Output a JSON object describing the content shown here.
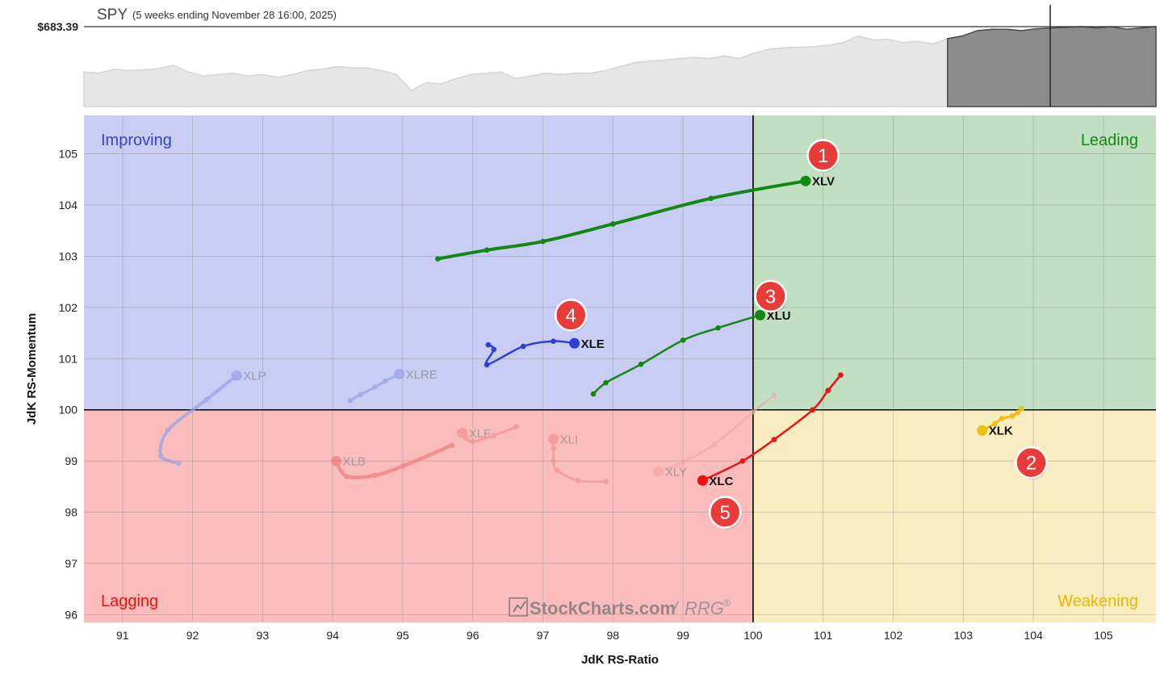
{
  "header": {
    "symbol": "SPY",
    "period": "(5 weeks ending November 28 16:00, 2025)",
    "price_label": "$683.39"
  },
  "colors": {
    "improving": "#c9cdf4",
    "leading": "#c1dfc1",
    "lagging": "#fbbcbc",
    "weakening": "#f8ecc0",
    "improving_text": "#3344cc",
    "leading_text": "#138a13",
    "lagging_text": "#ee1111",
    "weakening_text": "#e8b800",
    "marker": "#ea3b3b"
  },
  "quadrants": {
    "improving": "Improving",
    "leading": "Leading",
    "lagging": "Lagging",
    "weakening": "Weakening"
  },
  "watermark": {
    "main": "StockCharts.com",
    "sep": "/",
    "rrg": "RRG",
    "reg": "®"
  },
  "chart_data": [
    {
      "type": "area",
      "title": "SPY",
      "subtitle": "(5 weeks ending November 28 16:00, 2025)",
      "reference_label": "$683.39",
      "values": [
        66,
        65,
        68,
        67,
        67.5,
        68.5,
        71,
        66,
        63,
        64,
        65,
        63,
        64,
        62,
        64,
        67,
        68,
        70,
        69,
        69,
        67,
        64,
        52,
        58,
        57,
        61,
        64,
        65,
        66,
        61,
        63,
        65,
        64,
        65,
        65,
        67,
        70,
        73,
        74,
        75,
        76,
        77,
        76,
        78,
        76,
        80,
        83,
        84,
        84.5,
        85,
        86,
        88,
        93,
        90,
        90.5,
        88,
        89,
        87,
        91,
        93,
        97,
        98,
        98,
        97,
        98.5,
        99,
        99.5,
        100,
        99,
        100,
        98,
        99,
        100
      ],
      "highlight_from_index": 58
    },
    {
      "type": "line",
      "xlabel": "JdK RS-Ratio",
      "ylabel": "JdK RS-Momentum",
      "xlim": [
        90.45,
        105.75
      ],
      "ylim": [
        95.85,
        105.75
      ],
      "xticks": [
        "91",
        "92",
        "93",
        "94",
        "95",
        "96",
        "97",
        "98",
        "99",
        "100",
        "101",
        "102",
        "103",
        "104",
        "105"
      ],
      "yticks": [
        "96",
        "97",
        "98",
        "99",
        "100",
        "101",
        "102",
        "103",
        "104",
        "105"
      ],
      "grid": true,
      "center": [
        100,
        100
      ],
      "series": [
        {
          "name": "XLV",
          "color": "#118811",
          "opacity": 1,
          "width": 4,
          "points": [
            [
              95.5,
              102.95
            ],
            [
              96.2,
              103.12
            ],
            [
              97.0,
              103.29
            ],
            [
              98.0,
              103.63
            ],
            [
              99.4,
              104.13
            ],
            [
              100.75,
              104.47
            ]
          ]
        },
        {
          "name": "XLU",
          "color": "#118811",
          "opacity": 1,
          "width": 2.5,
          "points": [
            [
              97.72,
              100.31
            ],
            [
              97.9,
              100.53
            ],
            [
              98.4,
              100.89
            ],
            [
              99.0,
              101.36
            ],
            [
              99.5,
              101.6
            ],
            [
              100.1,
              101.85
            ]
          ]
        },
        {
          "name": "XLE",
          "color": "#2f3fd4",
          "opacity": 1,
          "width": 2.5,
          "points": [
            [
              96.22,
              101.27
            ],
            [
              96.3,
              101.18
            ],
            [
              96.2,
              100.88
            ],
            [
              96.72,
              101.24
            ],
            [
              97.15,
              101.34
            ],
            [
              97.45,
              101.3
            ]
          ]
        },
        {
          "name": "XLK",
          "color": "#efbf14",
          "opacity": 1,
          "width": 3,
          "points": [
            [
              103.83,
              100.02
            ],
            [
              103.78,
              99.95
            ],
            [
              103.7,
              99.88
            ],
            [
              103.55,
              99.83
            ],
            [
              103.45,
              99.73
            ],
            [
              103.27,
              99.6
            ]
          ]
        },
        {
          "name": "XLC",
          "color": "#ee1111",
          "opacity": 1,
          "width": 2.5,
          "points": [
            [
              101.25,
              100.68
            ],
            [
              101.07,
              100.38
            ],
            [
              100.85,
              100.0
            ],
            [
              100.3,
              99.42
            ],
            [
              99.85,
              99.0
            ],
            [
              99.28,
              98.62
            ]
          ]
        },
        {
          "name": "XLP",
          "color": "#9aa3e6",
          "opacity": 0.75,
          "width": 4,
          "points": [
            [
              91.8,
              98.96
            ],
            [
              91.55,
              99.1
            ],
            [
              91.65,
              99.6
            ],
            [
              92.2,
              100.2
            ],
            [
              92.63,
              100.67
            ]
          ]
        },
        {
          "name": "XLRE",
          "color": "#9aa3e6",
          "opacity": 0.75,
          "width": 3,
          "points": [
            [
              94.25,
              100.18
            ],
            [
              94.4,
              100.3
            ],
            [
              94.6,
              100.44
            ],
            [
              94.75,
              100.56
            ],
            [
              94.95,
              100.7
            ]
          ]
        },
        {
          "name": "XLB",
          "color": "#f07b7b",
          "opacity": 0.7,
          "width": 4.5,
          "points": [
            [
              95.7,
              99.31
            ],
            [
              95.0,
              98.9
            ],
            [
              94.6,
              98.72
            ],
            [
              94.2,
              98.7
            ],
            [
              94.05,
              99.0
            ]
          ]
        },
        {
          "name": "XLF",
          "color": "#f09090",
          "opacity": 0.7,
          "width": 3,
          "points": [
            [
              96.62,
              99.67
            ],
            [
              96.3,
              99.5
            ],
            [
              96.0,
              99.38
            ],
            [
              95.9,
              99.45
            ],
            [
              95.85,
              99.55
            ]
          ]
        },
        {
          "name": "XLI",
          "color": "#f09090",
          "opacity": 0.7,
          "width": 2.5,
          "points": [
            [
              97.9,
              98.6
            ],
            [
              97.5,
              98.62
            ],
            [
              97.2,
              98.82
            ],
            [
              97.15,
              99.0
            ],
            [
              97.15,
              99.25
            ],
            [
              97.15,
              99.43
            ]
          ]
        },
        {
          "name": "XLY",
          "color": "#f2a8a8",
          "opacity": 0.7,
          "width": 2.5,
          "points": [
            [
              100.3,
              100.28
            ],
            [
              100.0,
              99.96
            ],
            [
              99.45,
              99.33
            ],
            [
              99.0,
              98.98
            ],
            [
              98.65,
              98.8
            ]
          ]
        }
      ],
      "annotations": [
        "1",
        "2",
        "3",
        "4",
        "5"
      ]
    }
  ]
}
